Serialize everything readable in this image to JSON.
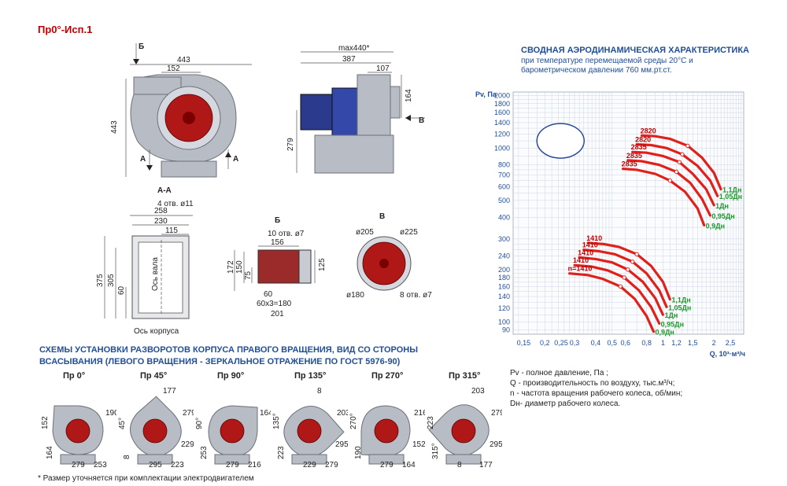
{
  "header": {
    "model_code": "Пр0°-Исп.1"
  },
  "views": {
    "front": {
      "view_letter_b": "Б",
      "dim_width": "443",
      "dim_inlet": "152",
      "dim_height": "443",
      "section_a_left": "А",
      "section_a_right": "А"
    },
    "side": {
      "dim_max": "max440*",
      "dim_387": "387",
      "dim_107": "107",
      "dim_164": "164",
      "dim_279": "279",
      "view_letter_v": "В"
    },
    "section_aa": {
      "title": "А-А",
      "holes": "4 отв. ø11",
      "dim_258": "258",
      "dim_230": "230",
      "dim_115": "115",
      "dim_375": "375",
      "dim_305": "305",
      "dim_60": "60",
      "shaft_axis": "Ось вала",
      "body_axis": "Ось корпуса"
    },
    "view_b": {
      "title": "Б",
      "holes": "10 отв. ø7",
      "dim_156": "156",
      "dim_172": "172",
      "dim_150": "150",
      "dim_75": "75",
      "dim_125": "125",
      "dim_60": "60",
      "dim_60x3": "60x3=180",
      "dim_201": "201"
    },
    "view_v": {
      "title": "В",
      "dim_205": "ø205",
      "dim_225": "ø225",
      "dim_180": "ø180",
      "holes": "8 отв. ø7"
    }
  },
  "schemes": {
    "title_line1": "СХЕМЫ УСТАНОВКИ РАЗВОРОТОВ КОРПУСА ПРАВОГО ВРАЩЕНИЯ, ВИД СО СТОРОНЫ",
    "title_line2": "ВСАСЫВАНИЯ (ЛЕВОГО ВРАЩЕНИЯ - ЗЕРКАЛЬНОЕ ОТРАЖЕНИЕ ПО ГОСТ 5976-90)",
    "items": [
      {
        "label": "Пр 0°",
        "dims": [
          "152",
          "164",
          "279",
          "253",
          "190"
        ]
      },
      {
        "label": "Пр 45°",
        "dims": [
          "45°",
          "8",
          "295",
          "223",
          "279",
          "229",
          "177"
        ]
      },
      {
        "label": "Пр 90°",
        "dims": [
          "90°",
          "253",
          "279",
          "216",
          "164"
        ]
      },
      {
        "label": "Пр 135°",
        "dims": [
          "135°",
          "223",
          "229",
          "279",
          "203",
          "295",
          "8"
        ]
      },
      {
        "label": "Пр 270°",
        "dims": [
          "270°",
          "190",
          "279",
          "164",
          "216",
          "152"
        ]
      },
      {
        "label": "Пр 315°",
        "dims": [
          "223",
          "315°",
          "8",
          "177",
          "279",
          "295",
          "203"
        ]
      }
    ],
    "footnote": "* Размер уточняется при комплектации электродвигателем"
  },
  "chart_data": {
    "type": "line",
    "title": "СВОДНАЯ  АЭРОДИНАМИЧЕСКАЯ ХАРАКТЕРИСТИКА",
    "subtitle_line1": "при температуре перемещаемой среды 20°С и",
    "subtitle_line2": "барометрическом давлении 760 мм.рт.ст.",
    "ylabel": "Pv, Па",
    "xlabel": "Q, 10³·м³/ч",
    "x_scale": "log",
    "y_scale": "log",
    "xlim": [
      0.13,
      3.0
    ],
    "ylim": [
      85,
      2100
    ],
    "x_ticks": [
      "0,15",
      "0,2",
      "0,25",
      "0,3",
      "0,4",
      "0,5",
      "0,6",
      "0,8",
      "1",
      "1,2",
      "1,5",
      "2",
      "2,5"
    ],
    "y_ticks": [
      "2000",
      "1800",
      "1600",
      "1400",
      "1200",
      "1000",
      "800",
      "700",
      "600",
      "500",
      "400",
      "300",
      "240",
      "200",
      "180",
      "160",
      "140",
      "120",
      "100",
      "90"
    ],
    "grid": true,
    "series": [
      {
        "name": "1,1Дн",
        "rpm": "2820",
        "x": [
          0.75,
          0.9,
          1.1,
          1.4,
          1.7,
          2.0,
          2.2
        ],
        "y": [
          1180,
          1170,
          1130,
          1030,
          880,
          720,
          580
        ]
      },
      {
        "name": "1,05Дн",
        "rpm": "2820",
        "x": [
          0.7,
          0.85,
          1.05,
          1.3,
          1.6,
          1.9,
          2.1
        ],
        "y": [
          1050,
          1040,
          1000,
          920,
          790,
          650,
          530
        ]
      },
      {
        "name": "1Дн",
        "rpm": "2835",
        "x": [
          0.66,
          0.8,
          1.0,
          1.25,
          1.5,
          1.8,
          2.0
        ],
        "y": [
          950,
          940,
          900,
          830,
          710,
          580,
          470
        ]
      },
      {
        "name": "0,95Дн",
        "rpm": "2835",
        "x": [
          0.62,
          0.75,
          0.95,
          1.2,
          1.45,
          1.7,
          1.9
        ],
        "y": [
          850,
          840,
          800,
          730,
          630,
          510,
          410
        ]
      },
      {
        "name": "0,9Дн",
        "rpm": "2835",
        "x": [
          0.58,
          0.7,
          0.9,
          1.1,
          1.35,
          1.6,
          1.75
        ],
        "y": [
          760,
          750,
          710,
          650,
          560,
          450,
          360
        ]
      },
      {
        "name": "1,1Дн",
        "rpm": "1410",
        "x": [
          0.36,
          0.45,
          0.55,
          0.7,
          0.85,
          1.0,
          1.1
        ],
        "y": [
          285,
          280,
          270,
          245,
          210,
          170,
          135
        ]
      },
      {
        "name": "1,05Дн",
        "rpm": "1410",
        "x": [
          0.34,
          0.42,
          0.52,
          0.66,
          0.8,
          0.95,
          1.05
        ],
        "y": [
          260,
          255,
          245,
          222,
          190,
          152,
          122
        ]
      },
      {
        "name": "1Дн",
        "rpm": "1410",
        "x": [
          0.32,
          0.4,
          0.5,
          0.62,
          0.76,
          0.9,
          1.0
        ],
        "y": [
          235,
          230,
          220,
          200,
          170,
          137,
          110
        ]
      },
      {
        "name": "0,95Дн",
        "rpm": "1410",
        "x": [
          0.3,
          0.38,
          0.47,
          0.59,
          0.72,
          0.85,
          0.95
        ],
        "y": [
          212,
          208,
          198,
          180,
          152,
          122,
          98
        ]
      },
      {
        "name": "0,9Дн",
        "rpm": "n=1410",
        "x": [
          0.28,
          0.36,
          0.44,
          0.56,
          0.68,
          0.8,
          0.88
        ],
        "y": [
          190,
          186,
          177,
          160,
          136,
          108,
          88
        ]
      }
    ]
  },
  "legend": {
    "line1": "Pv - полное давление, Па ;",
    "line2": "Q - производительность по воздуху, тыс.м³/ч;",
    "line3": "n - частота вращения рабочего колеса, об/мин;",
    "line4": "Dн- диаметр рабочего колеса."
  },
  "colors": {
    "curve": "#e0201a",
    "diameter_label": "#1a9a2a",
    "title_blue": "#1f4e9a",
    "model_red": "#c00000"
  }
}
